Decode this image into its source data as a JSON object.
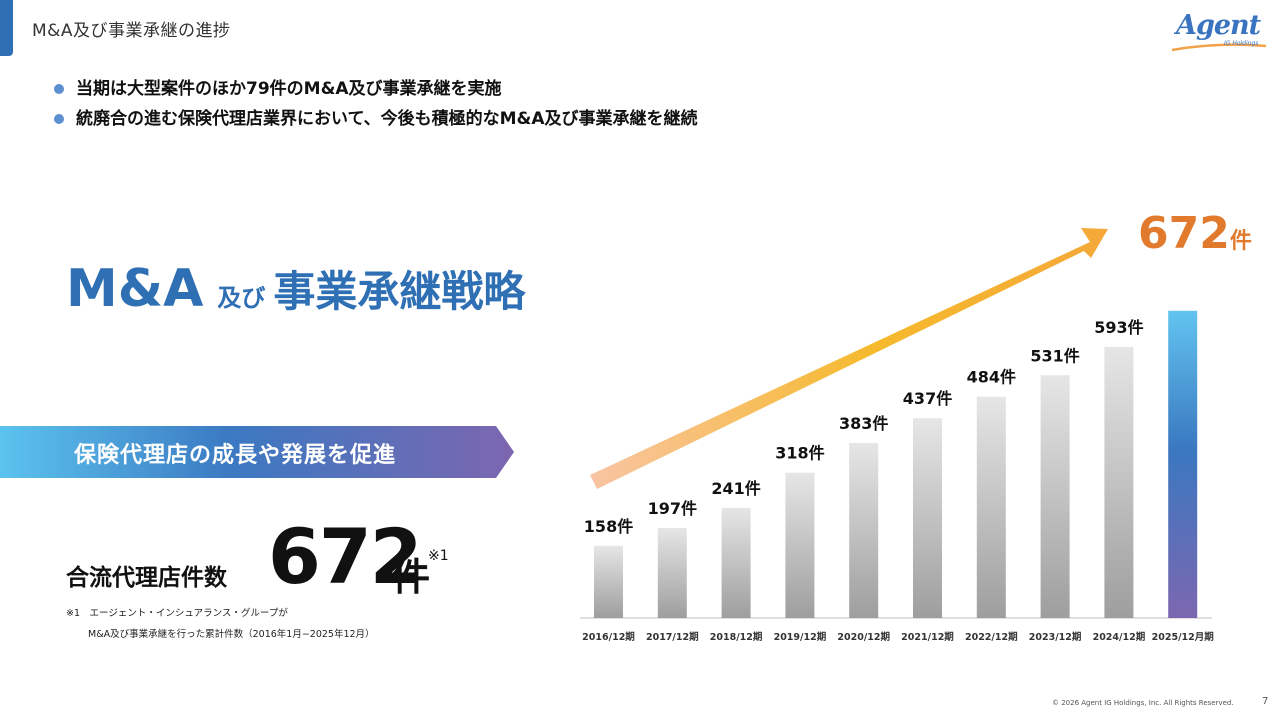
{
  "header": {
    "title": "M&A及び事業承継の進捗"
  },
  "logo": {
    "text": "Agent",
    "sub": "IG Holdings"
  },
  "bullets": [
    "当期は大型案件のほか79件のM&A及び事業承継を実施",
    "統廃合の進む保険代理店業界において、今後も積極的なM&A及び事業承継を継続"
  ],
  "main_title": {
    "part1": "M&A",
    "part2": "及び",
    "part3": "事業承継戦略"
  },
  "banner": {
    "text": "保険代理店の成長や発展を促進"
  },
  "merge": {
    "label": "合流代理店件数",
    "value": "672",
    "unit": "件",
    "note": "※1"
  },
  "footnote": {
    "line1": "※1　エージェント・インシュアランス・グループが",
    "line2": "M&A及び事業承継を行った累計件数（2016年1月−2025年12月）"
  },
  "big_count": {
    "value": "672",
    "unit": "件"
  },
  "chart_data": {
    "type": "bar",
    "categories": [
      "2016/12期",
      "2017/12期",
      "2018/12期",
      "2019/12期",
      "2020/12期",
      "2021/12期",
      "2022/12期",
      "2023/12期",
      "2024/12期",
      "2025/12月期"
    ],
    "values": [
      158,
      197,
      241,
      318,
      383,
      437,
      484,
      531,
      593,
      672
    ],
    "value_labels": [
      "158件",
      "197件",
      "241件",
      "318件",
      "383件",
      "437件",
      "484件",
      "531件",
      "593件",
      ""
    ],
    "unit": "件",
    "ylim": [
      0,
      700
    ],
    "grid": false,
    "colors": {
      "bar_gradient": [
        "#e6e6e6",
        "#9e9e9e"
      ],
      "highlight_gradient": [
        "#62c4f0",
        "#3a78c0",
        "#7b67b0"
      ],
      "arrow_gradient": [
        "#f7c3a0",
        "#f5b81f",
        "#f4a83a"
      ]
    }
  },
  "footer": {
    "copyright": "© 2026 Agent IG Holdings, Inc. All Rights Reserved.",
    "page": "7"
  }
}
